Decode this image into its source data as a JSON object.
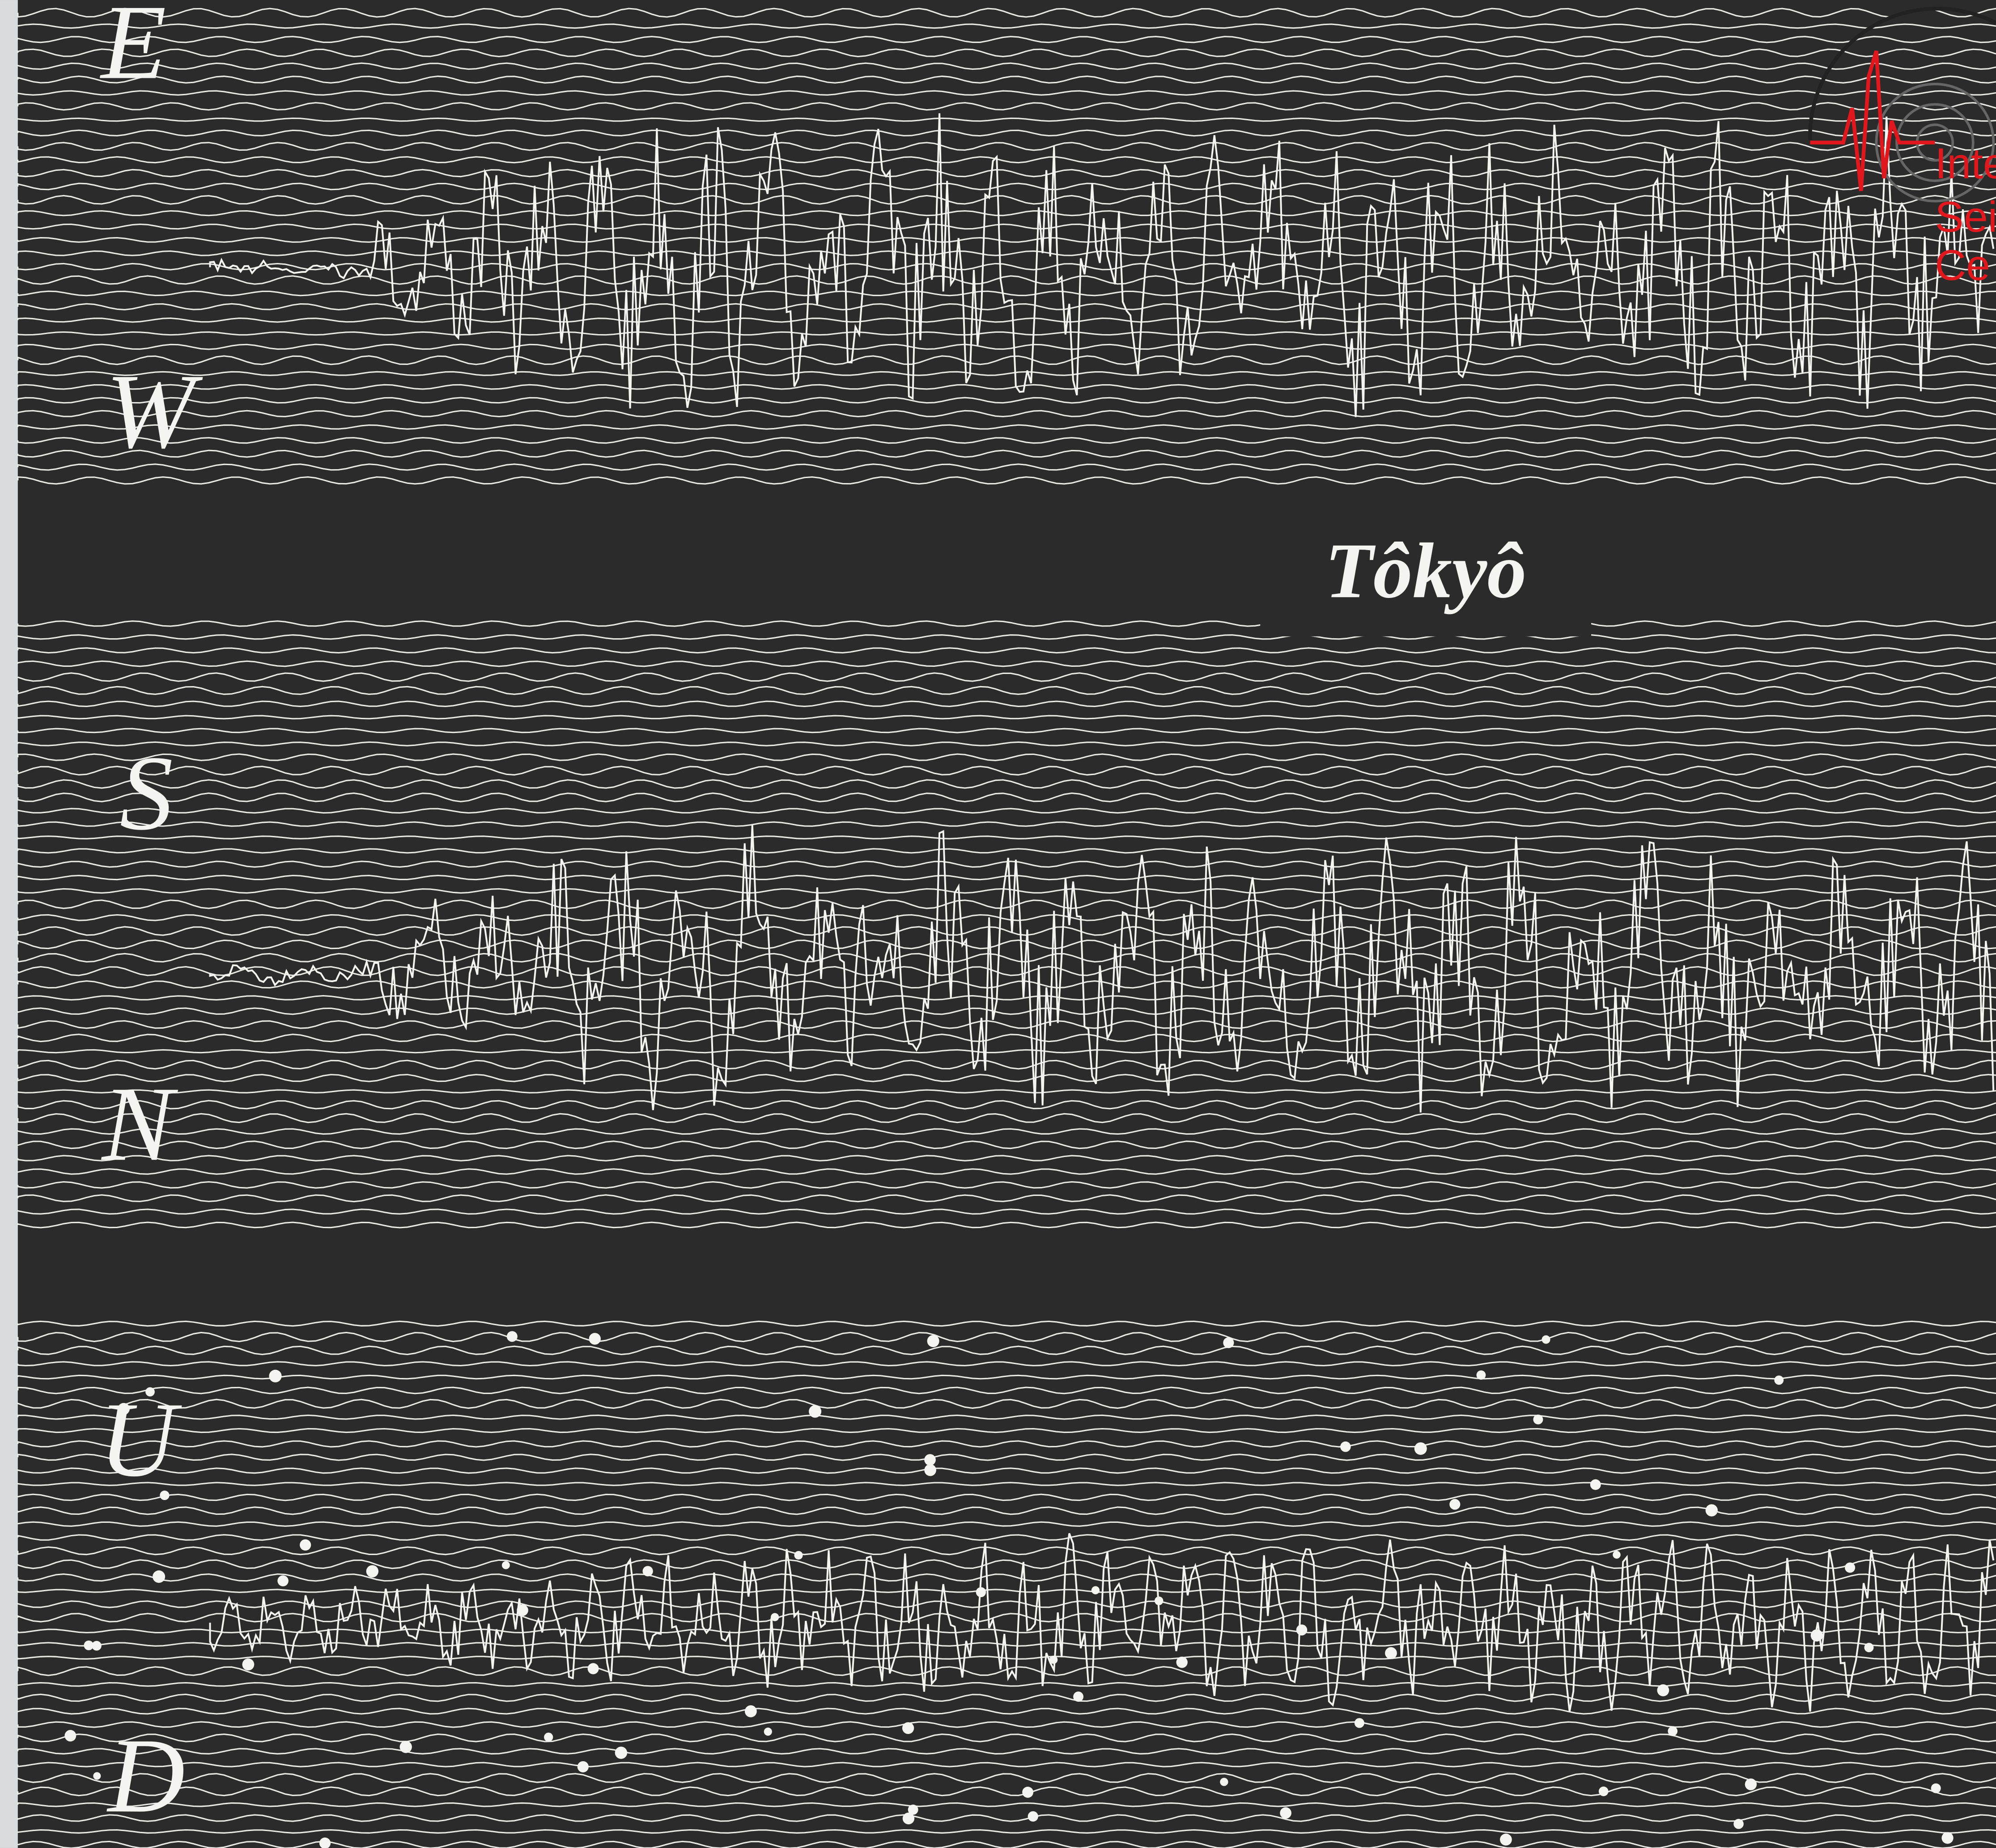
{
  "labels": {
    "east": "E",
    "west": "W",
    "station": "Tôkyô",
    "south": "S",
    "north": "N",
    "up": "U",
    "down": "D"
  },
  "logo": {
    "line1": "Inte",
    "line2": "Seis",
    "line3": "Ce"
  }
}
